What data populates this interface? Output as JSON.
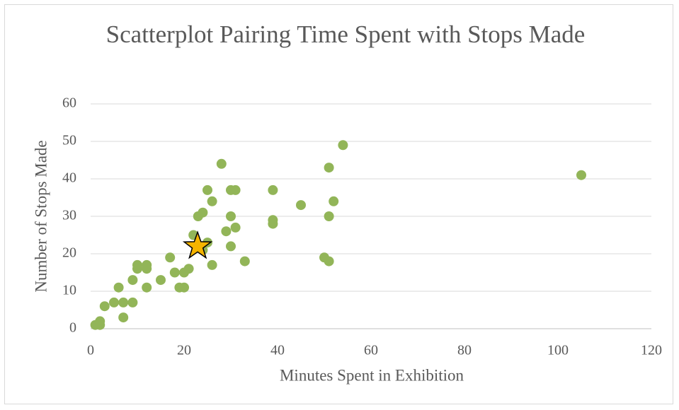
{
  "chart_data": {
    "type": "scatter",
    "title": "Scatterplot Pairing Time Spent with Stops Made",
    "x_label": "Minutes Spent in Exhibition",
    "y_label": "Number of Stops Made",
    "color": "#92b558",
    "x": [
      1,
      2,
      2,
      3,
      5,
      6,
      7,
      7,
      9,
      9,
      10,
      10,
      12,
      12,
      12,
      15,
      17,
      18,
      19,
      20,
      20,
      21,
      22,
      23,
      24,
      25,
      25,
      24,
      26,
      26,
      28,
      29,
      30,
      31,
      30,
      30,
      31,
      33,
      39,
      39,
      39,
      45,
      50,
      51,
      51,
      51,
      52,
      54,
      105
    ],
    "values": [
      1,
      2,
      1,
      6,
      7,
      11,
      3,
      7,
      7,
      13,
      17,
      16,
      17,
      16,
      11,
      13,
      19,
      15,
      11,
      11,
      15,
      16,
      25,
      30,
      31,
      37,
      23,
      21,
      34,
      17,
      44,
      26,
      37,
      37,
      30,
      22,
      27,
      18,
      37,
      29,
      28,
      33,
      19,
      18,
      43,
      30,
      34,
      49,
      41
    ],
    "highlight": {
      "x": 22.9,
      "y": 22,
      "color": "#f5b400"
    },
    "xlim": [
      0,
      120
    ],
    "xticks": [
      0,
      20,
      40,
      60,
      80,
      100,
      120
    ],
    "ylim": [
      0,
      60
    ],
    "yticks": [
      0,
      10,
      20,
      30,
      40,
      50,
      60
    ],
    "grid": true
  }
}
